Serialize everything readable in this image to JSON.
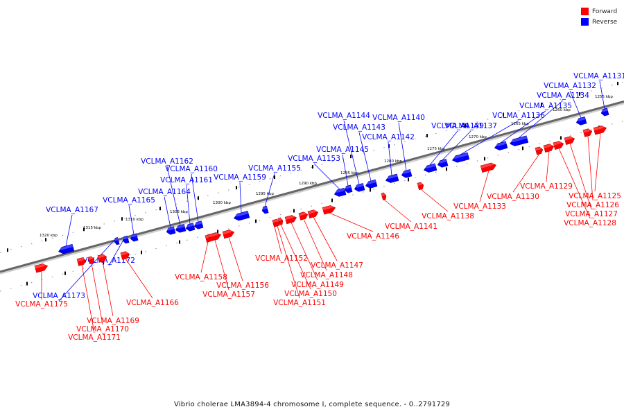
{
  "legend": {
    "forward_label": "Forward",
    "reverse_label": "Reverse",
    "forward_color": "#ff0000",
    "reverse_color": "#0000ff"
  },
  "caption": "Vibrio cholerae LMA3894-4 chromosome I, complete sequence. - 0..2791729",
  "ticks": [
    "1255 kbp",
    "1260 kbp",
    "1265 kbp",
    "1270 kbp",
    "1275 kbp",
    "1280 kbp",
    "1285 kbp",
    "1290 kbp",
    "1295 kbp",
    "1300 kbp",
    "1305 kbp",
    "1310 kbp",
    "1315 kbp",
    "1320 kbp"
  ],
  "reverse_genes": [
    "VCLMA_A1131",
    "VCLMA_A1132",
    "VCLMA_A1134",
    "VCLMA_A1135",
    "VCLMA_A1136",
    "VCLMA_A1137",
    "VCLMA_A1139",
    "VCLMA_A1140",
    "VCLMA_A1142",
    "VCLMA_A1143",
    "VCLMA_A1144",
    "VCLMA_A1145",
    "VCLMA_A1153",
    "VCLMA_A1155",
    "VCLMA_A1159",
    "VCLMA_A1160",
    "VCLMA_A1161",
    "VCLMA_A1162",
    "VCLMA_A1164",
    "VCLMA_A1165",
    "VCLMA_A1167",
    "VCLMA_A1172",
    "VCLMA_A1173"
  ],
  "forward_genes": [
    "VCLMA_A1125",
    "VCLMA_A1126",
    "VCLMA_A1127",
    "VCLMA_A1128",
    "VCLMA_A1129",
    "VCLMA_A1130",
    "VCLMA_A1133",
    "VCLMA_A1138",
    "VCLMA_A1141",
    "VCLMA_A1146",
    "VCLMA_A1147",
    "VCLMA_A1148",
    "VCLMA_A1149",
    "VCLMA_A1150",
    "VCLMA_A1151",
    "VCLMA_A1152",
    "VCLMA_A1156",
    "VCLMA_A1157",
    "VCLMA_A1158",
    "VCLMA_A1166",
    "VCLMA_A1169",
    "VCLMA_A1170",
    "VCLMA_A1171",
    "VCLMA_A1175"
  ]
}
